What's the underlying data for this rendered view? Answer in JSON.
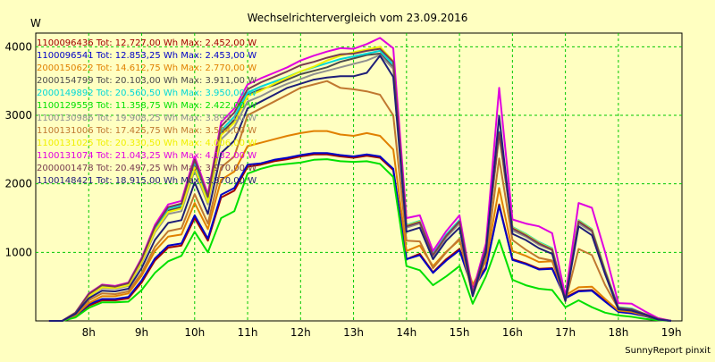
{
  "chart_data": {
    "type": "line",
    "title": "Wechselrichtervergleich vom 23.09.2016",
    "ylabel": "W",
    "xlabel": "",
    "ylim": [
      0,
      4200
    ],
    "grid": true,
    "legend_position": "top-left",
    "background": "#ffffc1",
    "grid_color": "#00c800",
    "x_ticks": [
      "8h",
      "9h",
      "10h",
      "11h",
      "12h",
      "13h",
      "14h",
      "15h",
      "16h",
      "17h",
      "18h",
      "19h"
    ],
    "y_ticks": [
      1000,
      2000,
      3000,
      4000
    ],
    "x": [
      7.25,
      7.5,
      7.75,
      8,
      8.25,
      8.5,
      8.75,
      9,
      9.25,
      9.5,
      9.75,
      10,
      10.25,
      10.5,
      10.75,
      11,
      11.25,
      11.5,
      11.75,
      12,
      12.25,
      12.5,
      12.75,
      13,
      13.25,
      13.5,
      13.75,
      14,
      14.25,
      14.5,
      14.75,
      15,
      15.25,
      15.5,
      15.75,
      16,
      16.25,
      16.5,
      16.75,
      17,
      17.25,
      17.5,
      17.75,
      18,
      18.25,
      18.5,
      18.75,
      19
    ],
    "series": [
      {
        "name": "1100096436 Tot: 12.727,00 Wh Max: 2.452,00 W",
        "color": "#a00000",
        "values": [
          0,
          0,
          60,
          220,
          300,
          300,
          330,
          560,
          880,
          1070,
          1100,
          1500,
          1170,
          1800,
          1900,
          2250,
          2280,
          2330,
          2360,
          2400,
          2430,
          2430,
          2400,
          2380,
          2410,
          2380,
          2200,
          900,
          980,
          710,
          900,
          1050,
          480,
          780,
          1700,
          900,
          840,
          760,
          770,
          340,
          440,
          450,
          290,
          140,
          120,
          80,
          20,
          0
        ]
      },
      {
        "name": "1100096541 Tot: 12.853,25 Wh Max: 2.453,00 W",
        "color": "#0000c8",
        "values": [
          0,
          0,
          70,
          240,
          320,
          320,
          350,
          590,
          910,
          1100,
          1130,
          1540,
          1200,
          1840,
          1940,
          2280,
          2300,
          2350,
          2380,
          2420,
          2450,
          2450,
          2420,
          2400,
          2430,
          2400,
          2220,
          900,
          960,
          700,
          880,
          1030,
          460,
          760,
          1680,
          890,
          830,
          750,
          760,
          330,
          430,
          440,
          280,
          130,
          110,
          70,
          20,
          0
        ]
      },
      {
        "name": "2000150622 Tot: 14.612,75 Wh Max: 2.770,00 W",
        "color": "#e08000",
        "values": [
          0,
          0,
          80,
          260,
          360,
          360,
          400,
          660,
          1020,
          1230,
          1260,
          1720,
          1340,
          2060,
          2180,
          2550,
          2600,
          2650,
          2700,
          2740,
          2770,
          2770,
          2720,
          2700,
          2740,
          2700,
          2500,
          1020,
          1100,
          800,
          1010,
          1180,
          530,
          870,
          1940,
          1020,
          950,
          860,
          870,
          370,
          490,
          500,
          320,
          150,
          130,
          80,
          20,
          0
        ]
      },
      {
        "name": "2000154799 Tot: 20.103,00 Wh Max: 3.911,00 W",
        "color": "#4c4c4c",
        "values": [
          0,
          0,
          110,
          370,
          500,
          480,
          530,
          870,
          1330,
          1610,
          1660,
          2290,
          1760,
          2740,
          2930,
          3300,
          3380,
          3440,
          3520,
          3600,
          3650,
          3700,
          3780,
          3830,
          3880,
          3900,
          3700,
          1380,
          1440,
          960,
          1240,
          1450,
          400,
          1060,
          2730,
          1350,
          1250,
          1130,
          1040,
          310,
          1450,
          1320,
          720,
          190,
          170,
          100,
          30,
          0
        ]
      },
      {
        "name": "2000149892 Tot: 20.560,50 Wh Max: 3.950,00 W",
        "color": "#00d8d8",
        "values": [
          0,
          0,
          110,
          380,
          510,
          490,
          540,
          880,
          1350,
          1640,
          1690,
          2320,
          1790,
          2780,
          2980,
          3330,
          3420,
          3490,
          3560,
          3640,
          3700,
          3760,
          3820,
          3860,
          3900,
          3940,
          3740,
          1400,
          1460,
          980,
          1260,
          1470,
          410,
          1080,
          2760,
          1370,
          1270,
          1150,
          1060,
          330,
          1470,
          1340,
          740,
          200,
          180,
          100,
          30,
          0
        ]
      },
      {
        "name": "1100129553 Tot: 11.358,75 Wh Max: 2.422,00 W",
        "color": "#00e000",
        "values": [
          0,
          0,
          50,
          190,
          270,
          270,
          280,
          450,
          700,
          870,
          950,
          1300,
          1000,
          1500,
          1600,
          2150,
          2220,
          2270,
          2290,
          2310,
          2350,
          2360,
          2330,
          2320,
          2330,
          2290,
          2100,
          800,
          740,
          520,
          650,
          800,
          250,
          650,
          1180,
          600,
          520,
          470,
          450,
          200,
          300,
          200,
          120,
          80,
          60,
          30,
          10,
          0
        ]
      },
      {
        "name": "1100130986 Tot: 19.908,25 Wh Max: 3.893,00 W",
        "color": "#909090",
        "values": [
          0,
          0,
          110,
          360,
          480,
          470,
          510,
          840,
          1290,
          1560,
          1600,
          2200,
          1700,
          2650,
          2830,
          3200,
          3280,
          3380,
          3460,
          3530,
          3600,
          3650,
          3700,
          3750,
          3800,
          3880,
          3680,
          1360,
          1420,
          940,
          1220,
          1420,
          390,
          1040,
          2700,
          1320,
          1230,
          1110,
          1030,
          300,
          1420,
          1300,
          700,
          180,
          160,
          100,
          30,
          0
        ]
      },
      {
        "name": "1100131006 Tot: 17.425,75 Wh Max: 3.584,00 W",
        "color": "#c07830",
        "values": [
          0,
          0,
          90,
          300,
          400,
          390,
          430,
          700,
          1080,
          1310,
          1350,
          1850,
          1420,
          2240,
          2400,
          3000,
          3100,
          3200,
          3300,
          3400,
          3450,
          3500,
          3400,
          3380,
          3350,
          3300,
          3000,
          1170,
          1160,
          770,
          1000,
          1200,
          370,
          900,
          2370,
          1180,
          1040,
          920,
          880,
          290,
          1050,
          960,
          520,
          180,
          150,
          90,
          20,
          0
        ]
      },
      {
        "name": "1100131025 Tot: 20.330,50 Wh Max: 4.006,00 W",
        "color": "#f0f000",
        "values": [
          0,
          0,
          100,
          360,
          490,
          480,
          520,
          860,
          1310,
          1590,
          1640,
          2240,
          1730,
          2710,
          2890,
          3280,
          3360,
          3460,
          3550,
          3640,
          3710,
          3800,
          3870,
          3920,
          3960,
          4000,
          3790,
          1390,
          1450,
          960,
          1240,
          1450,
          400,
          1060,
          2740,
          1360,
          1260,
          1140,
          1050,
          320,
          1460,
          1330,
          730,
          190,
          170,
          100,
          30,
          0
        ]
      },
      {
        "name": "1100131074 Tot: 21.043,25 Wh Max: 4.132,00 W",
        "color": "#e000e0",
        "values": [
          0,
          0,
          120,
          400,
          530,
          510,
          560,
          920,
          1400,
          1700,
          1750,
          2400,
          1850,
          2900,
          3100,
          3450,
          3540,
          3620,
          3700,
          3800,
          3870,
          3930,
          3980,
          3970,
          4040,
          4130,
          3980,
          1500,
          1540,
          1020,
          1310,
          1540,
          430,
          1130,
          3400,
          1480,
          1420,
          1380,
          1280,
          360,
          1720,
          1650,
          1000,
          260,
          250,
          140,
          40,
          0
        ]
      },
      {
        "name": "2000001478 Tot: 20.497,25 Wh Max: 3.970,00 W",
        "color": "#783c50",
        "values": [
          0,
          0,
          120,
          390,
          520,
          500,
          550,
          900,
          1370,
          1660,
          1710,
          2350,
          1810,
          2840,
          3040,
          3380,
          3480,
          3560,
          3640,
          3730,
          3780,
          3840,
          3890,
          3900,
          3940,
          3970,
          3780,
          1380,
          1440,
          960,
          1240,
          1450,
          400,
          1060,
          2750,
          1350,
          1250,
          1130,
          1040,
          310,
          1450,
          1320,
          720,
          190,
          170,
          100,
          30,
          0
        ]
      },
      {
        "name": "1100148421 Tot: 18.915,00 Wh Max: 3.870,00 W",
        "color": "#1e1e78",
        "values": [
          0,
          0,
          100,
          330,
          440,
          430,
          470,
          770,
          1180,
          1430,
          1470,
          2020,
          1560,
          2450,
          2630,
          3100,
          3200,
          3300,
          3400,
          3460,
          3520,
          3550,
          3570,
          3570,
          3620,
          3870,
          3560,
          1300,
          1360,
          900,
          1170,
          1360,
          360,
          1000,
          2990,
          1270,
          1180,
          1060,
          980,
          290,
          1380,
          1250,
          680,
          170,
          150,
          90,
          20,
          0
        ]
      }
    ]
  },
  "credit": "SunnyReport pinxit"
}
